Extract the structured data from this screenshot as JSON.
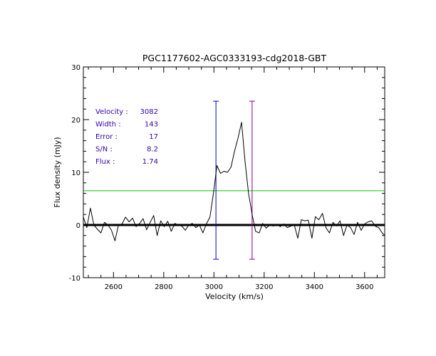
{
  "chart_data": {
    "type": "line",
    "title": "PGC1177602-AGC0333193-cdg2018-GBT",
    "xlabel": "Velocity (km/s)",
    "ylabel": "Flux density (mJy)",
    "xlim": [
      2480,
      3680
    ],
    "ylim": [
      -10,
      30
    ],
    "x_ticks": [
      2600,
      2800,
      3000,
      3200,
      3400,
      3600
    ],
    "y_ticks": [
      -10,
      0,
      10,
      20,
      30
    ],
    "grid": false,
    "colors": {
      "spectrum": "#000000",
      "baseline": "#000000",
      "rms_level": "#00cc00",
      "marker_left": "#0000cc",
      "marker_right": "#880088",
      "stats_text": "#3300aa"
    },
    "series": [
      {
        "x": [
          2480,
          2494,
          2508,
          2522,
          2536,
          2550,
          2564,
          2578,
          2592,
          2606,
          2620,
          2634,
          2648,
          2662,
          2676,
          2690,
          2704,
          2718,
          2732,
          2746,
          2760,
          2774,
          2788,
          2802,
          2816,
          2830,
          2844,
          2858,
          2872,
          2886,
          2900,
          2914,
          2928,
          2942,
          2956,
          2970,
          2984,
          2998,
          3012,
          3026,
          3040,
          3054,
          3068,
          3082,
          3096,
          3110,
          3124,
          3138,
          3152,
          3166,
          3180,
          3194,
          3208,
          3222,
          3236,
          3250,
          3264,
          3278,
          3292,
          3306,
          3320,
          3334,
          3348,
          3362,
          3376,
          3390,
          3404,
          3418,
          3432,
          3446,
          3460,
          3474,
          3488,
          3502,
          3516,
          3530,
          3544,
          3558,
          3572,
          3586,
          3600,
          3614,
          3628,
          3642,
          3656,
          3670,
          3680
        ],
        "y": [
          1.5,
          -0.5,
          3.2,
          0.0,
          -0.8,
          -1.5,
          0.5,
          0.0,
          -1.0,
          -3.0,
          0.0,
          0.2,
          1.5,
          0.6,
          1.3,
          -0.3,
          0.3,
          1.2,
          -0.9,
          0.5,
          1.8,
          -2.0,
          0.8,
          -0.3,
          0.7,
          -1.2,
          0.3,
          0.0,
          -0.2,
          -1.0,
          0.0,
          0.3,
          -0.5,
          0.0,
          -1.5,
          0.2,
          1.5,
          6.0,
          11.3,
          9.8,
          10.2,
          10.0,
          11.0,
          14.0,
          16.5,
          19.5,
          12.0,
          6.0,
          2.0,
          -1.2,
          -1.5,
          0.3,
          -0.6,
          0.0,
          -0.2,
          0.1,
          -0.3,
          0.2,
          -0.5,
          -0.2,
          0.0,
          -2.5,
          1.0,
          0.8,
          0.9,
          -2.5,
          1.6,
          1.0,
          2.2,
          -0.5,
          -1.5,
          0.5,
          -0.2,
          0.8,
          -2.0,
          0.0,
          -0.5,
          -1.8,
          0.5,
          -1.0,
          0.2,
          0.6,
          0.8,
          -0.2,
          -0.5,
          -1.5,
          -2.0
        ]
      }
    ],
    "baseline_y": 0,
    "rms_level_y": 6.5,
    "markers": [
      {
        "x": 3008,
        "y_range": [
          -6.5,
          23.5
        ]
      },
      {
        "x": 3152,
        "y_range": [
          -6.5,
          23.5
        ]
      }
    ],
    "stats": [
      {
        "label": "Velocity :",
        "value": "3082"
      },
      {
        "label": "Width :",
        "value": "143"
      },
      {
        "label": "Error :",
        "value": "17"
      },
      {
        "label": "S/N :",
        "value": "8.2"
      },
      {
        "label": "Flux :",
        "value": "1.74"
      }
    ]
  }
}
